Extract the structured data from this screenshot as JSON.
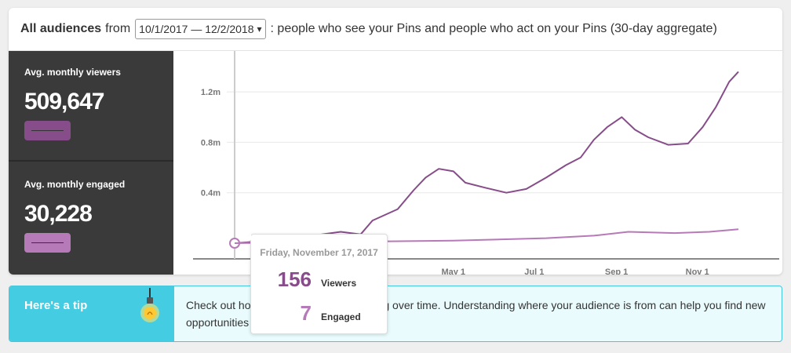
{
  "header": {
    "title": "All audiences",
    "from_label": "from",
    "date_range": "10/1/2017 — 12/2/2018",
    "caret": "▾",
    "description": ": people who see your Pins and people who act on your Pins (30-day aggregate)"
  },
  "stats": {
    "viewers": {
      "label": "Avg. monthly viewers",
      "value": "509,647"
    },
    "engaged": {
      "label": "Avg. monthly engaged",
      "value": "30,228"
    }
  },
  "colors": {
    "viewers": "#874c8a",
    "engaged": "#b77ab8",
    "panel": "#3a3a3a",
    "tip": "#44cde2"
  },
  "chart_data": {
    "type": "line",
    "y_ticks": [
      "0.4m",
      "0.8m",
      "1.2m"
    ],
    "y_tick_values": [
      0.4,
      0.8,
      1.2
    ],
    "x_ticks": [
      "May 1",
      "Jul 1",
      "Sep 1",
      "Nov 1"
    ],
    "x_tick_dates": [
      "2018-05-01",
      "2018-07-01",
      "2018-09-01",
      "2018-11-01"
    ],
    "xlim": [
      "2017-11-17",
      "2018-12-02"
    ],
    "ylim": [
      0,
      1.4
    ],
    "series": [
      {
        "name": "Viewers",
        "points": [
          [
            "2017-11-17",
            0.0
          ],
          [
            "2017-12-15",
            0.02
          ],
          [
            "2018-01-15",
            0.06
          ],
          [
            "2018-02-05",
            0.09
          ],
          [
            "2018-02-20",
            0.07
          ],
          [
            "2018-03-01",
            0.18
          ],
          [
            "2018-03-20",
            0.27
          ],
          [
            "2018-04-01",
            0.42
          ],
          [
            "2018-04-10",
            0.52
          ],
          [
            "2018-04-20",
            0.59
          ],
          [
            "2018-05-01",
            0.57
          ],
          [
            "2018-05-10",
            0.48
          ],
          [
            "2018-05-25",
            0.44
          ],
          [
            "2018-06-10",
            0.4
          ],
          [
            "2018-06-25",
            0.43
          ],
          [
            "2018-07-10",
            0.52
          ],
          [
            "2018-07-25",
            0.62
          ],
          [
            "2018-08-05",
            0.68
          ],
          [
            "2018-08-15",
            0.82
          ],
          [
            "2018-08-25",
            0.92
          ],
          [
            "2018-09-05",
            1.0
          ],
          [
            "2018-09-15",
            0.9
          ],
          [
            "2018-09-25",
            0.84
          ],
          [
            "2018-10-10",
            0.78
          ],
          [
            "2018-10-25",
            0.79
          ],
          [
            "2018-11-05",
            0.92
          ],
          [
            "2018-11-15",
            1.08
          ],
          [
            "2018-11-25",
            1.28
          ],
          [
            "2018-12-02",
            1.36
          ]
        ]
      },
      {
        "name": "Engaged",
        "points": [
          [
            "2017-11-17",
            0.0
          ],
          [
            "2018-02-01",
            0.01
          ],
          [
            "2018-05-01",
            0.02
          ],
          [
            "2018-07-10",
            0.04
          ],
          [
            "2018-08-15",
            0.06
          ],
          [
            "2018-09-10",
            0.09
          ],
          [
            "2018-10-15",
            0.08
          ],
          [
            "2018-11-10",
            0.09
          ],
          [
            "2018-12-02",
            0.11
          ]
        ]
      }
    ]
  },
  "tooltip": {
    "date": "Friday, November 17, 2017",
    "viewers_value": "156",
    "viewers_label": "Viewers",
    "engaged_value": "7",
    "engaged_label": "Engaged"
  },
  "tip": {
    "title": "Here's a tip",
    "text": "Check out how your audience is changing over time. Understanding where your audience is from can help you find new opportunities"
  }
}
